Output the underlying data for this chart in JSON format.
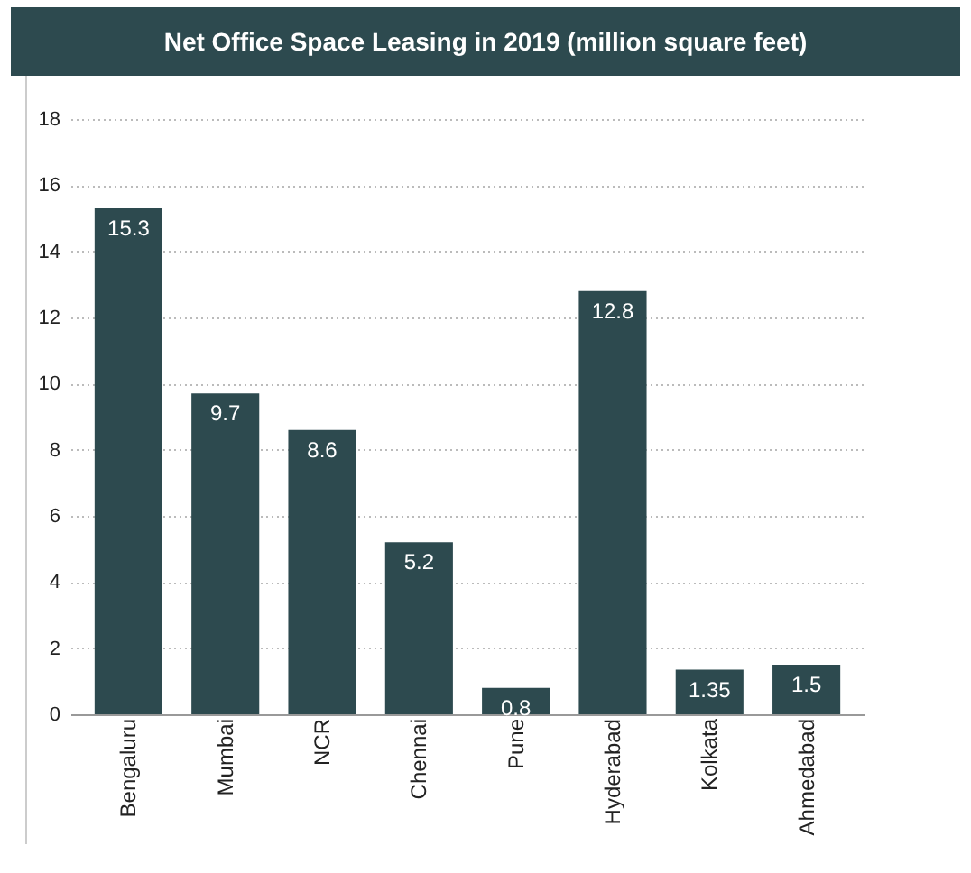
{
  "chart_data": {
    "type": "bar",
    "title": "Net Office Space Leasing in 2019 (million square feet)",
    "categories": [
      "Bengaluru",
      "Mumbai",
      "NCR",
      "Chennai",
      "Pune",
      "Hyderabad",
      "Kolkata",
      "Ahmedabad"
    ],
    "values": [
      15.3,
      9.7,
      8.6,
      5.2,
      0.8,
      12.8,
      1.35,
      1.5
    ],
    "color": "#2d4a4f",
    "ylim": [
      0,
      18
    ],
    "yticks": [
      0,
      2,
      4,
      6,
      8,
      10,
      12,
      14,
      16,
      18
    ],
    "grid": true,
    "data_labels": true
  }
}
